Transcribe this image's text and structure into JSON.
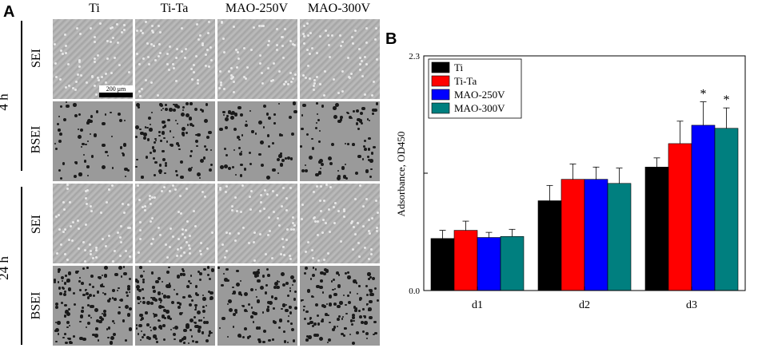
{
  "panel_a": {
    "letter": "A",
    "columns": [
      "Ti",
      "Ti-Ta",
      "MAO-250V",
      "MAO-300V"
    ],
    "row_labels": [
      "SEI",
      "BSEI",
      "SEI",
      "BSEI"
    ],
    "time_labels": [
      "4 h",
      "24 h"
    ],
    "scale_bar": "200 μm"
  },
  "panel_b": {
    "letter": "B"
  },
  "chart_data": {
    "type": "bar",
    "categories": [
      "d1",
      "d2",
      "d3"
    ],
    "series": [
      {
        "name": "Ti",
        "color": "#000000",
        "values": [
          0.51,
          0.88,
          1.21
        ],
        "errors": [
          0.08,
          0.15,
          0.09
        ]
      },
      {
        "name": "Ti-Ta",
        "color": "#ff0000",
        "values": [
          0.59,
          1.09,
          1.44
        ],
        "errors": [
          0.09,
          0.15,
          0.22
        ]
      },
      {
        "name": "MAO-250V",
        "color": "#0000ff",
        "values": [
          0.52,
          1.09,
          1.62
        ],
        "errors": [
          0.05,
          0.12,
          0.23
        ]
      },
      {
        "name": "MAO-300V",
        "color": "#007f7f",
        "values": [
          0.53,
          1.05,
          1.59
        ],
        "errors": [
          0.07,
          0.15,
          0.2
        ]
      }
    ],
    "annotations": [
      {
        "series": "MAO-250V",
        "category": "d3",
        "text": "*"
      },
      {
        "series": "MAO-300V",
        "category": "d3",
        "text": "*"
      }
    ],
    "ylabel": "Adsorbance, OD450",
    "xlabel": "",
    "ylim": [
      0.0,
      2.3
    ],
    "yticks_labeled": [
      "0.0",
      "2.3"
    ],
    "grid": false,
    "legend_position": "top-left"
  }
}
